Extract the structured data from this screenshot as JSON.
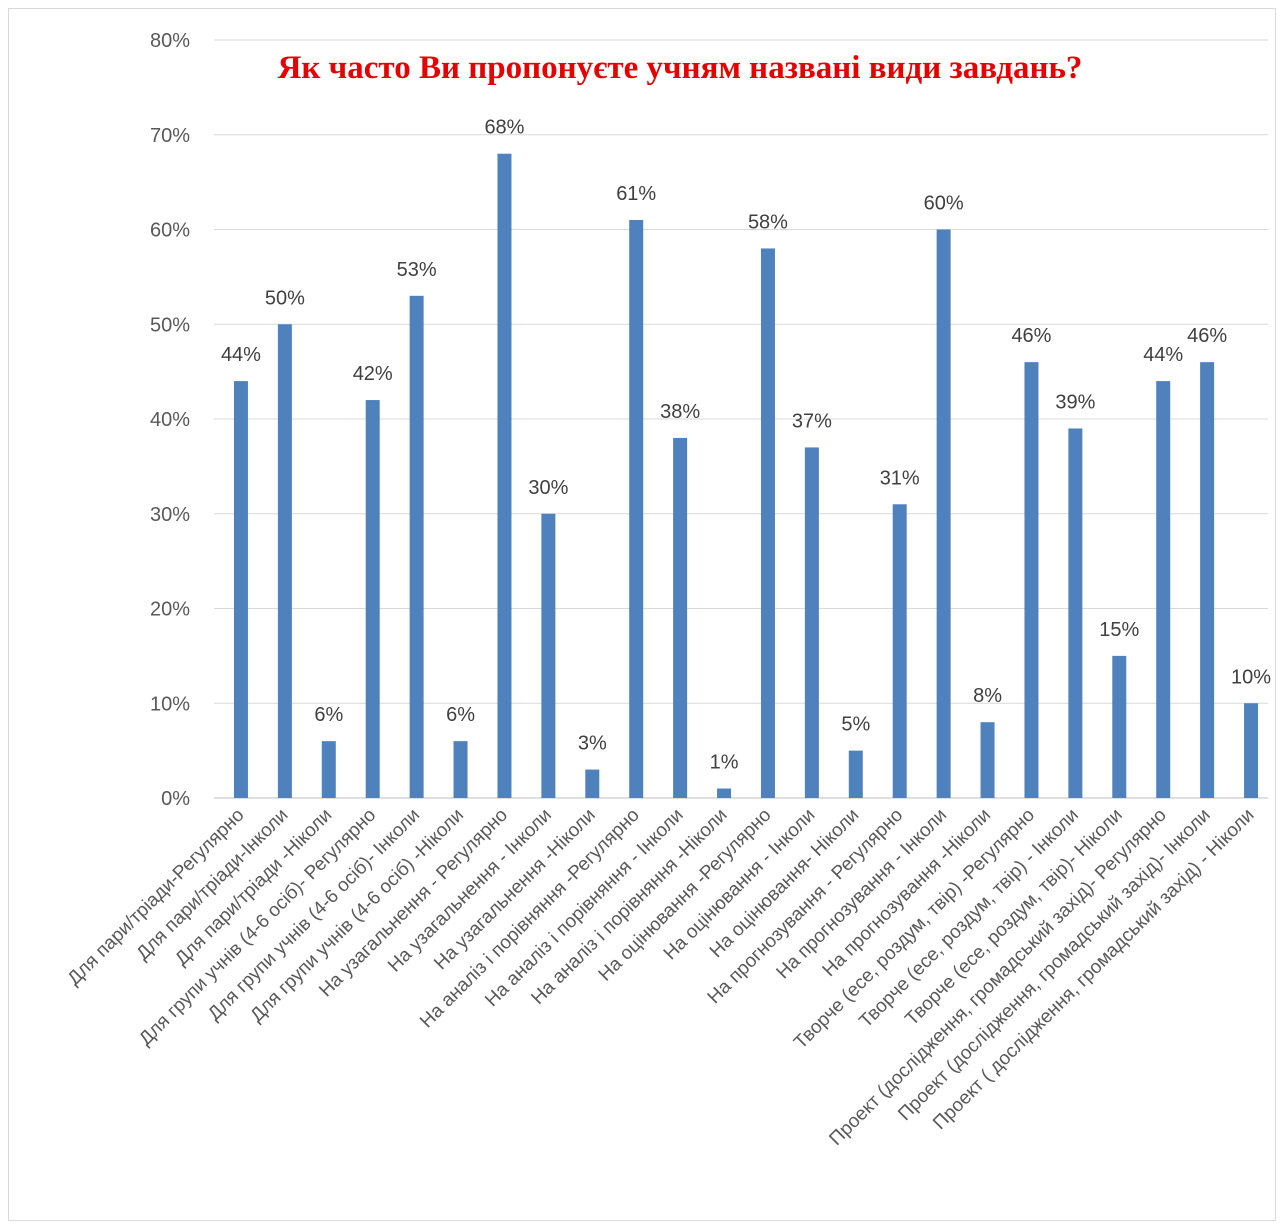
{
  "chart_data": {
    "type": "bar",
    "title": "Як часто Ви пропонуєте учням названі види завдань?",
    "xlabel": "",
    "ylabel": "",
    "ylim": [
      0,
      0.8
    ],
    "yticks": [
      "0%",
      "10%",
      "20%",
      "30%",
      "40%",
      "50%",
      "60%",
      "70%",
      "80%"
    ],
    "grid": true,
    "legend": "none",
    "categories": [
      "Для пари/тріади-Регулярно",
      "Для пари/тріади-Інколи",
      "Для пари/тріади -Ніколи",
      "Для групи учнів (4-6 осіб)- Регулярно",
      "Для групи учнів (4-6 осіб)- Інколи",
      "Для групи учнів (4-6 осіб) -Ніколи",
      "На узагальнення - Регулярно",
      "На узагальнення - Інколи",
      "На узагальнення -Ніколи",
      "На аналіз і порівняння -Регулярно",
      "На аналіз і порівняння - Інколи",
      "На аналіз і порівняння -Ніколи",
      "На оцінювання -Регулярно",
      "На оцінювання - Інколи",
      "На оцінювання- Ніколи",
      "На прогнозування - Регулярно",
      "На прогнозування - Інколи",
      "На прогнозування -Ніколи",
      "Творче (есе, роздум, твір) -Регулярно",
      "Творче (есе, роздум, твір) - Інколи",
      "Творче (есе, роздум, твір)- Ніколи",
      "Проект (дослідження, громадський захід)- Регулярно",
      "Проект (дослідження, громадський захід)- Інколи",
      "Проект ( дослідження, громадський захід) - Ніколи"
    ],
    "values": [
      0.44,
      0.5,
      0.06,
      0.42,
      0.53,
      0.06,
      0.68,
      0.3,
      0.03,
      0.61,
      0.38,
      0.01,
      0.58,
      0.37,
      0.05,
      0.31,
      0.6,
      0.08,
      0.46,
      0.39,
      0.15,
      0.44,
      0.46,
      0.1
    ],
    "data_labels": [
      "44%",
      "50%",
      "6%",
      "42%",
      "53%",
      "6%",
      "68%",
      "30%",
      "3%",
      "61%",
      "38%",
      "1%",
      "58%",
      "37%",
      "5%",
      "31%",
      "60%",
      "8%",
      "46%",
      "39%",
      "15%",
      "44%",
      "46%",
      "10%"
    ],
    "colors": {
      "bar": "#4f81bd",
      "title": "#e60000",
      "grid": "#d9d9d9",
      "axis": "#bfbfbf"
    }
  }
}
